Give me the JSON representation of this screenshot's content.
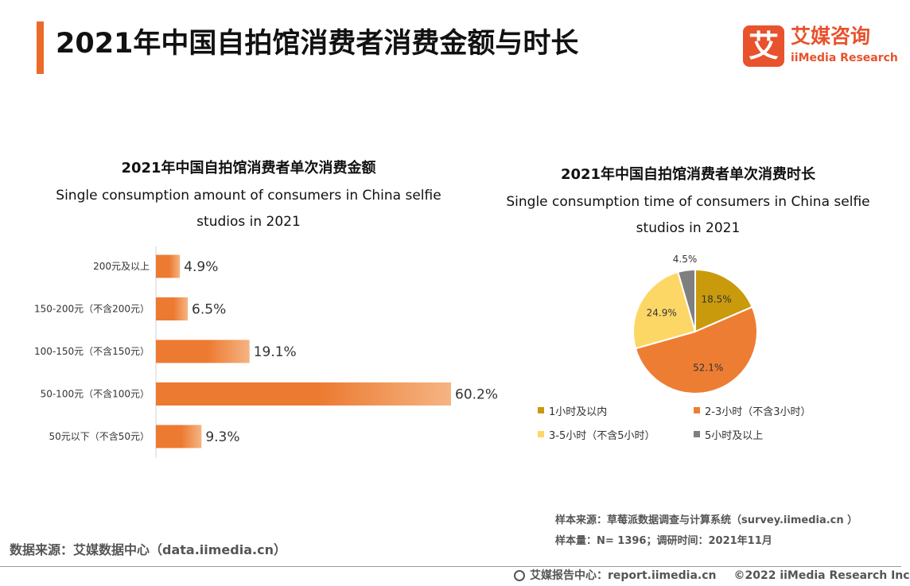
{
  "header": {
    "title": "2021年中国自拍馆消费者消费金额与时长",
    "accent_color": "#ec6a2a"
  },
  "logo": {
    "glyph": "艾",
    "name_cn": "艾媒咨询",
    "name_en": "iiMedia Research",
    "color": "#e8522c"
  },
  "chart_data": [
    {
      "type": "bar",
      "orientation": "horizontal",
      "title": "2021年中国自拍馆消费者单次消费金额",
      "subtitle": "Single consumption amount of consumers in China selfie studios in 2021",
      "categories": [
        "200元及以上",
        "150-200元（不含200元）",
        "100-150元（不含150元）",
        "50-100元（不含100元）",
        "50元以下（不含50元）"
      ],
      "values": [
        4.9,
        6.5,
        19.1,
        60.2,
        9.3
      ],
      "value_labels": [
        "4.9%",
        "6.5%",
        "19.1%",
        "60.2%",
        "9.3%"
      ],
      "unit": "%",
      "xlim": [
        0,
        60.2
      ],
      "grid": false,
      "bar_color_start": "#ec7a30",
      "bar_color_end": "#f5b483"
    },
    {
      "type": "pie",
      "title": "2021年中国自拍馆消费者单次消费时长",
      "subtitle": "Single consumption time of consumers in China selfie studios in 2021",
      "categories": [
        "1小时及以内",
        "2-3小时（不含3小时）",
        "3-5小时（不含5小时）",
        "5小时及以上"
      ],
      "values": [
        18.5,
        52.1,
        24.9,
        4.5
      ],
      "value_labels": [
        "18.5%",
        "52.1%",
        "24.9%",
        "4.5%"
      ],
      "colors": [
        "#c99a0b",
        "#ee7d34",
        "#fdd766",
        "#7f7f7f"
      ],
      "legend_position": "bottom"
    }
  ],
  "footer": {
    "sample_source": "样本来源：草莓派数据调查与计算系统（survey.iimedia.cn ）",
    "sample_size": "样本量：N= 1396；调研时间：2021年11月",
    "data_source": "数据来源：艾媒数据中心（data.iimedia.cn）",
    "report_center": "艾媒报告中心：report.iimedia.cn",
    "copyright": "©2022  iiMedia Research  Inc"
  }
}
